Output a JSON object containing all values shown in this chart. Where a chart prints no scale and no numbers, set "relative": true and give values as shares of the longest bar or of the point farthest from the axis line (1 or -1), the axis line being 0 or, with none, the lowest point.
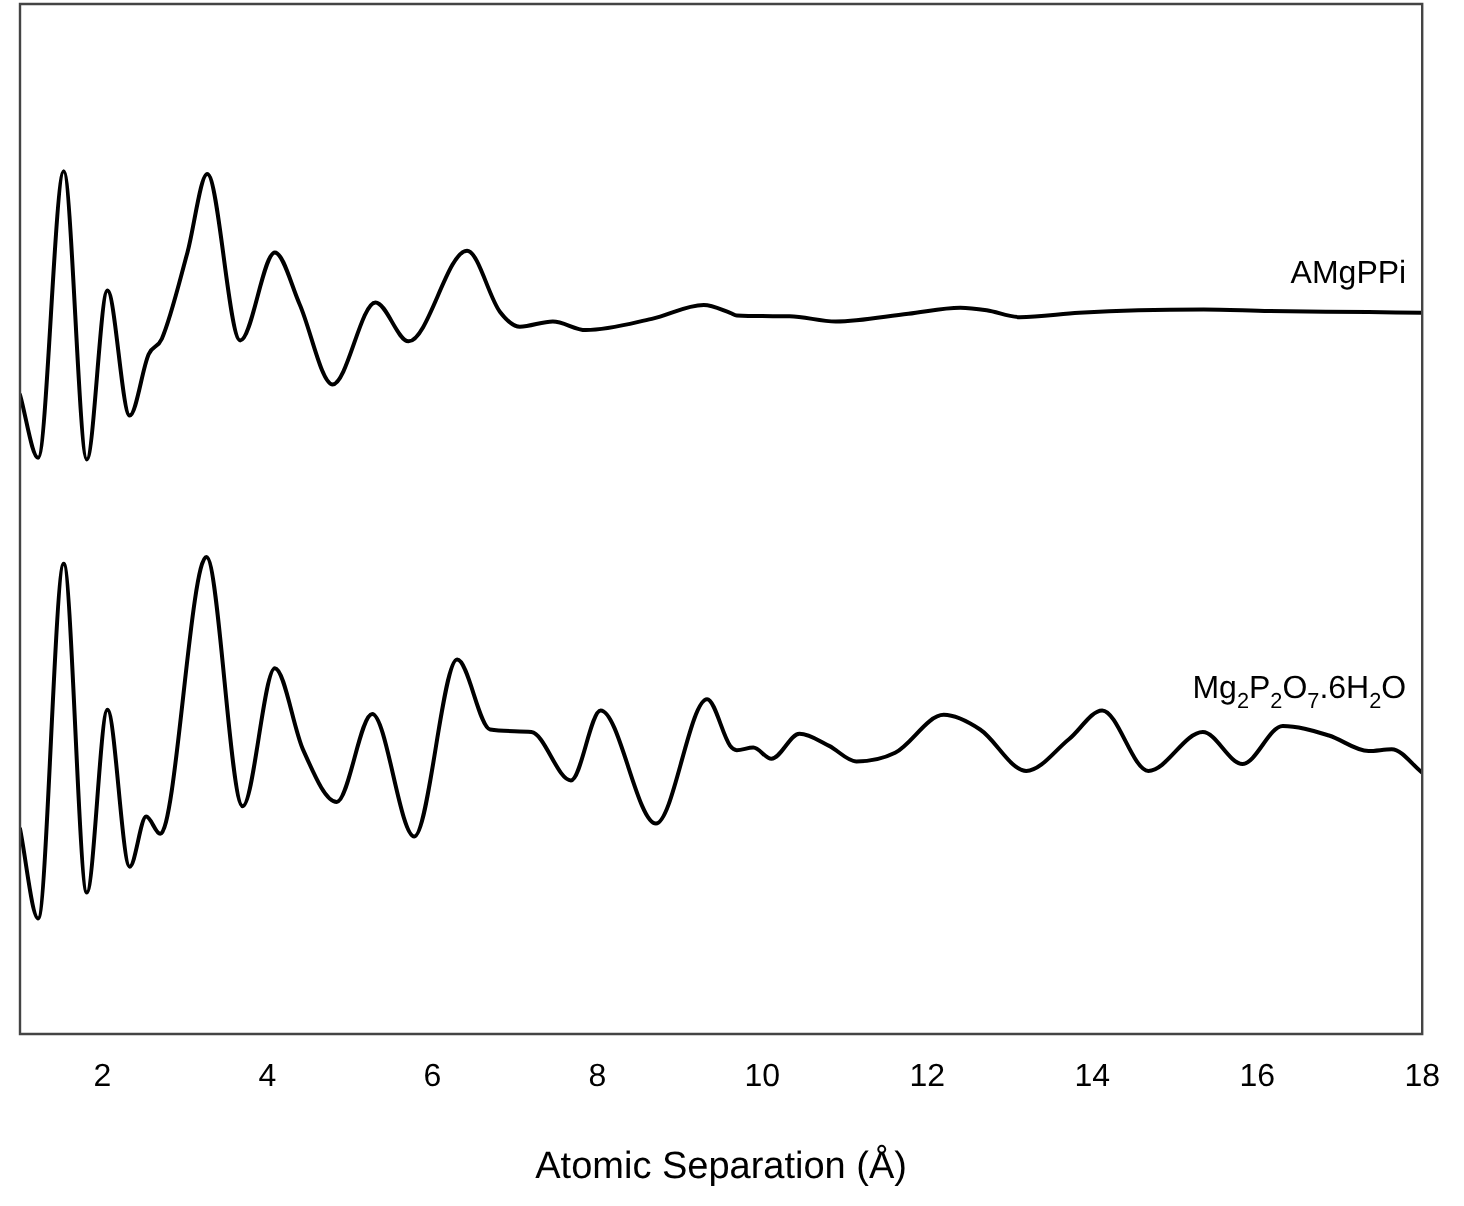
{
  "chart_data": {
    "type": "line",
    "relative": true,
    "xlabel": "Atomic Separation (Å)",
    "xlim": [
      1,
      18
    ],
    "xticks": [
      2,
      4,
      6,
      8,
      10,
      12,
      14,
      16,
      18
    ],
    "grid": false,
    "legend": false,
    "marker": "none",
    "line_style": "solid",
    "series": [
      {
        "name": "AMgPPi",
        "color": "#000000",
        "x": [
          1.0,
          1.22,
          1.53,
          1.81,
          2.06,
          2.33,
          2.56,
          2.72,
          3.03,
          3.27,
          3.67,
          4.09,
          4.39,
          4.79,
          5.31,
          5.71,
          6.42,
          6.82,
          7.06,
          7.46,
          7.86,
          8.66,
          9.29,
          9.61,
          9.69,
          10.33,
          10.89,
          11.77,
          12.4,
          12.72,
          13.12,
          13.84,
          14.56,
          15.35,
          16.15,
          17.35,
          18.0
        ],
        "values": [
          0.741,
          0.668,
          1.0,
          0.666,
          0.862,
          0.717,
          0.788,
          0.806,
          0.906,
          0.997,
          0.804,
          0.906,
          0.846,
          0.753,
          0.848,
          0.803,
          0.908,
          0.837,
          0.82,
          0.826,
          0.816,
          0.829,
          0.845,
          0.836,
          0.833,
          0.832,
          0.826,
          0.835,
          0.842,
          0.839,
          0.831,
          0.836,
          0.839,
          0.84,
          0.838,
          0.837,
          0.836
        ]
      },
      {
        "name": "Mg$_{2}$P$_{2}$O$_{7}$.6H$_{2}$O",
        "color": "#000000",
        "x": [
          1.0,
          1.22,
          1.53,
          1.81,
          2.06,
          2.33,
          2.53,
          2.7,
          3.26,
          3.7,
          4.09,
          4.43,
          4.84,
          5.27,
          5.78,
          6.3,
          6.7,
          7.2,
          7.68,
          8.04,
          8.71,
          9.33,
          9.61,
          9.69,
          9.89,
          10.11,
          10.45,
          10.81,
          11.14,
          11.61,
          12.2,
          12.64,
          13.2,
          13.72,
          14.12,
          14.68,
          15.34,
          15.82,
          16.31,
          16.87,
          17.35,
          17.63,
          18.0
        ],
        "values": [
          0.238,
          0.134,
          0.545,
          0.164,
          0.376,
          0.194,
          0.252,
          0.232,
          0.553,
          0.264,
          0.424,
          0.33,
          0.269,
          0.371,
          0.229,
          0.434,
          0.353,
          0.35,
          0.294,
          0.375,
          0.244,
          0.388,
          0.334,
          0.329,
          0.332,
          0.319,
          0.348,
          0.334,
          0.316,
          0.326,
          0.37,
          0.353,
          0.305,
          0.342,
          0.375,
          0.305,
          0.35,
          0.313,
          0.357,
          0.346,
          0.328,
          0.33,
          0.303
        ]
      }
    ]
  }
}
